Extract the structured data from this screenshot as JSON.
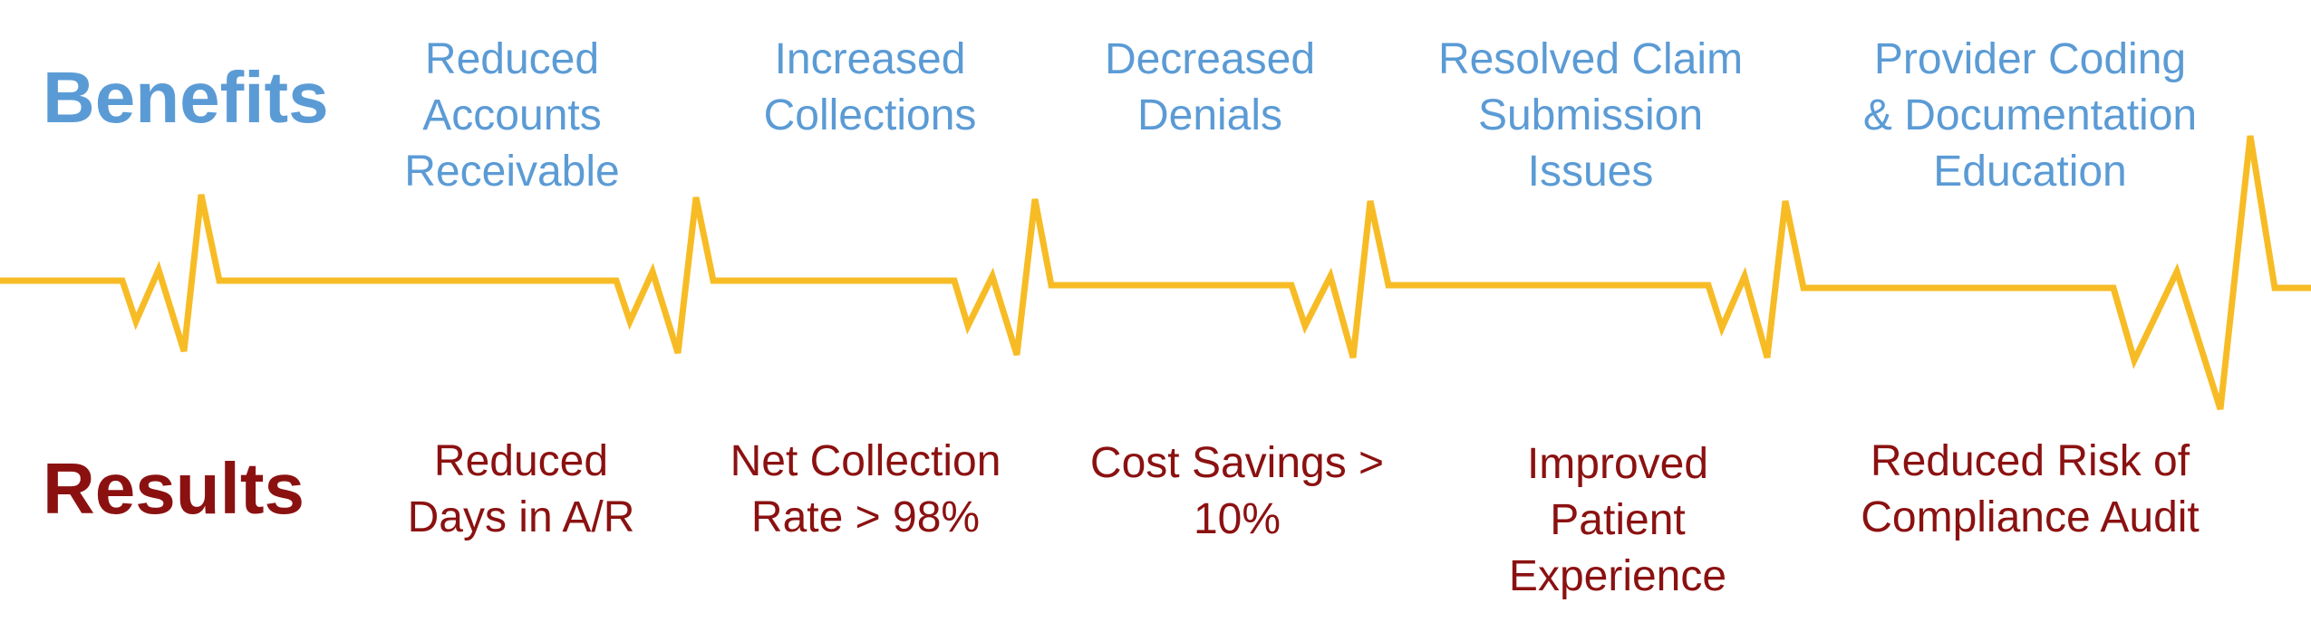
{
  "headings": {
    "benefits": "Benefits",
    "results": "Results"
  },
  "benefits": [
    "Reduced\nAccounts\nReceivable",
    "Increased\nCollections",
    "Decreased\nDenials",
    "Resolved Claim\nSubmission\nIssues",
    "Provider Coding\n& Documentation\nEducation"
  ],
  "results": [
    "Reduced\nDays in A/R",
    "Net Collection\nRate > 98%",
    "Cost Savings >\n10%",
    "Improved\nPatient\nExperience",
    "Reduced Risk of\nCompliance Audit"
  ],
  "colors": {
    "benefits": "#5b9bd5",
    "results": "#8b1111",
    "ekg_line": "#f7bc25",
    "background": "#ffffff"
  }
}
